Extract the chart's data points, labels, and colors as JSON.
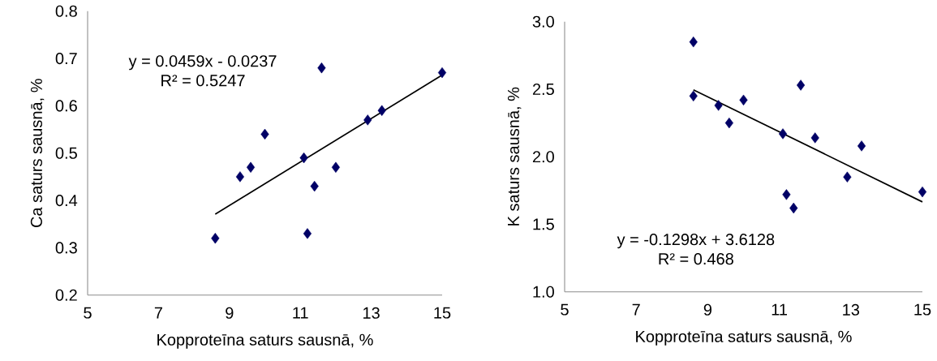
{
  "chart_data": [
    {
      "type": "scatter",
      "xlabel": "Kopproteīna saturs sausnā, %",
      "ylabel": "Ca saturs sausnā, %",
      "xlim": [
        5,
        15
      ],
      "xticks": [
        5,
        7,
        9,
        11,
        13,
        15
      ],
      "ylim": [
        0.2,
        0.8
      ],
      "yticks": [
        0.2,
        0.3,
        0.4,
        0.5,
        0.6,
        0.7,
        0.8
      ],
      "series": [
        {
          "color": "#000066",
          "marker": "diamond",
          "x": [
            8.6,
            9.3,
            9.6,
            10.0,
            11.1,
            11.2,
            11.4,
            11.6,
            12.0,
            12.9,
            13.3,
            15.0
          ],
          "values": [
            0.32,
            0.45,
            0.47,
            0.54,
            0.49,
            0.33,
            0.43,
            0.68,
            0.47,
            0.57,
            0.59,
            0.67
          ]
        },
        {
          "type": "line",
          "color": "#000000",
          "marker": "none",
          "line_style": "solid",
          "x": [
            8.6,
            15.0
          ],
          "values": [
            0.371,
            0.665
          ]
        }
      ],
      "annotations": [
        "y = 0.0459x - 0.0237",
        "R² = 0.5247"
      ]
    },
    {
      "type": "scatter",
      "xlabel": "Kopproteīna saturs sausnā, %",
      "ylabel": "K saturs sausnā, %",
      "xlim": [
        5,
        15
      ],
      "xticks": [
        5,
        7,
        9,
        11,
        13,
        15
      ],
      "ylim": [
        1.0,
        3.0
      ],
      "yticks": [
        {
          "value": 1.0,
          "label": "1.0"
        },
        1.5,
        {
          "value": 2.0,
          "label": "2.0"
        },
        2.5,
        {
          "value": 3.0,
          "label": "3.0"
        }
      ],
      "series": [
        {
          "color": "#000066",
          "marker": "diamond",
          "x": [
            8.6,
            8.6,
            9.3,
            9.6,
            10.0,
            11.1,
            11.2,
            11.4,
            11.6,
            12.0,
            12.9,
            13.3,
            15.0
          ],
          "values": [
            2.85,
            2.45,
            2.38,
            2.25,
            2.42,
            2.17,
            1.72,
            1.62,
            2.53,
            2.14,
            1.85,
            2.08,
            1.74
          ]
        },
        {
          "type": "line",
          "color": "#000000",
          "marker": "none",
          "line_style": "solid",
          "x": [
            8.6,
            15.0
          ],
          "values": [
            2.496,
            1.666
          ]
        }
      ],
      "annotations": [
        "y = -0.1298x + 3.6128",
        "R² = 0.468"
      ]
    }
  ]
}
